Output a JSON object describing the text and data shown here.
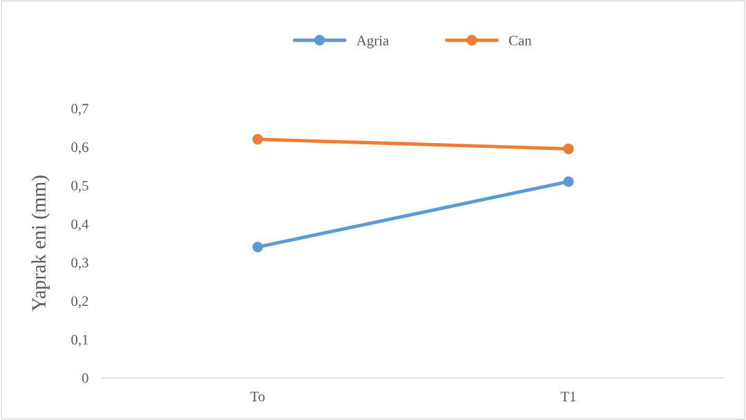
{
  "chart_data": {
    "type": "line",
    "ylabel": "Yaprak eni (mm)",
    "categories": [
      "To",
      "T1"
    ],
    "series": [
      {
        "name": "Agria",
        "color": "#5b9bd5",
        "values": [
          0.34,
          0.51
        ]
      },
      {
        "name": "Can",
        "color": "#ed7d31",
        "values": [
          0.62,
          0.595
        ]
      }
    ],
    "ylim": [
      0,
      0.7
    ],
    "yticks": [
      0,
      {
        "value": 0.1,
        "label": "0,1"
      },
      {
        "value": 0.2,
        "label": "0,2"
      },
      {
        "value": 0.3,
        "label": "0,3"
      },
      {
        "value": 0.4,
        "label": "0,4"
      },
      {
        "value": 0.5,
        "label": "0,5"
      },
      {
        "value": 0.6,
        "label": "0,6"
      },
      {
        "value": 0.7,
        "label": "0,7"
      }
    ],
    "grid": false,
    "legend": "top",
    "marker": "circle",
    "line_style": "solid"
  }
}
